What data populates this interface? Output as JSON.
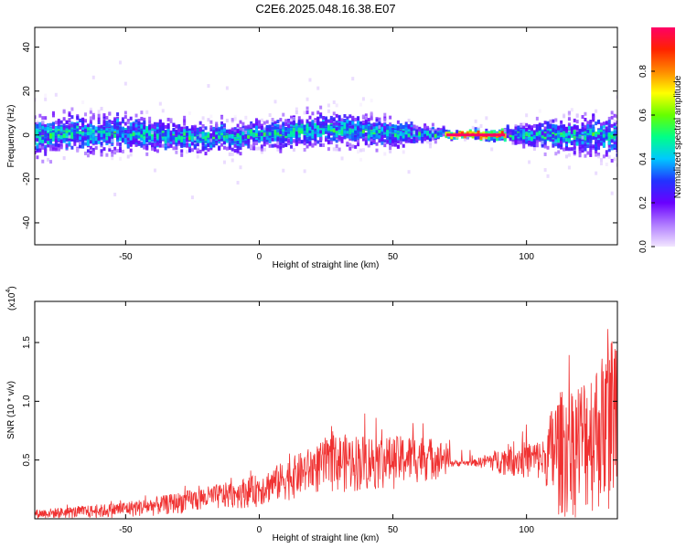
{
  "figure": {
    "title": "C2E6.2025.048.16.38.E07"
  },
  "chart_data": [
    {
      "type": "heatmap",
      "title": "C2E6.2025.048.16.38.E07",
      "xlabel": "Height of straight line (km)",
      "ylabel": "Frequency (Hz)",
      "xlim": [
        -84,
        134
      ],
      "ylim": [
        -50,
        49
      ],
      "x_ticks": [
        -50,
        0,
        50,
        100
      ],
      "x_tick_labels": [
        "-50",
        "0",
        "50",
        "100"
      ],
      "y_ticks": [
        -40,
        -20,
        0,
        20,
        40
      ],
      "y_tick_labels": [
        "-40",
        "-20",
        "0",
        "20",
        "40"
      ],
      "colorbar": {
        "label": "Normalized spectral amplitude",
        "range": [
          0,
          1
        ],
        "ticks": [
          0.0,
          0.2,
          0.4,
          0.6,
          0.8
        ],
        "tick_labels": [
          "0.0",
          "0.2",
          "0.4",
          "0.6",
          "0.8"
        ],
        "colors": [
          "#f2e6ff",
          "#b07cff",
          "#6a00ff",
          "#2233ff",
          "#00c8ff",
          "#00ff88",
          "#66ff00",
          "#ffff00",
          "#ff8800",
          "#ff2200",
          "#ff0066"
        ]
      },
      "ridge": {
        "description_values": [
          {
            "x": -80,
            "y": 0,
            "halfwidth": 12
          },
          {
            "x": -50,
            "y": 1,
            "halfwidth": 10
          },
          {
            "x": -20,
            "y": -1,
            "halfwidth": 8
          },
          {
            "x": 0,
            "y": 0,
            "halfwidth": 8
          },
          {
            "x": 25,
            "y": 3,
            "halfwidth": 10
          },
          {
            "x": 50,
            "y": 1,
            "halfwidth": 8
          },
          {
            "x": 70,
            "y": 0,
            "halfwidth": 2
          },
          {
            "x": 90,
            "y": 0,
            "halfwidth": 3
          },
          {
            "x": 105,
            "y": 0,
            "halfwidth": 8
          },
          {
            "x": 130,
            "y": 0,
            "halfwidth": 12
          }
        ],
        "peak_segment": {
          "x": [
            70,
            92
          ],
          "y": 0,
          "amplitude": 1.0
        }
      },
      "grid": false
    },
    {
      "type": "line",
      "xlabel": "Height of straight line (km)",
      "ylabel": "SNR (10 * v/v)",
      "y_scale_label": "(x10",
      "y_scale_exponent": "4",
      "xlim": [
        -84,
        134
      ],
      "ylim": [
        0,
        1.85
      ],
      "x_ticks": [
        -50,
        0,
        50,
        100
      ],
      "x_tick_labels": [
        "-50",
        "0",
        "50",
        "100"
      ],
      "y_ticks": [
        0.5,
        1.0,
        1.5
      ],
      "y_tick_labels": [
        "0.5",
        "1.0",
        "1.5"
      ],
      "series": [
        {
          "color": "#f03232",
          "envelope": {
            "x": [
              -84,
              -60,
              -40,
              -25,
              -10,
              0,
              10,
              20,
              30,
              40,
              50,
              60,
              70,
              72,
              80,
              90,
              100,
              107,
              110,
              120,
              130,
              134
            ],
            "upper": [
              0.08,
              0.12,
              0.18,
              0.25,
              0.32,
              0.38,
              0.5,
              0.62,
              0.72,
              0.72,
              0.7,
              0.72,
              0.65,
              0.5,
              0.5,
              0.6,
              0.66,
              0.68,
              1.05,
              1.2,
              1.45,
              1.75
            ],
            "lower": [
              0.0,
              0.0,
              0.02,
              0.05,
              0.08,
              0.1,
              0.15,
              0.2,
              0.22,
              0.22,
              0.25,
              0.3,
              0.35,
              0.44,
              0.45,
              0.38,
              0.33,
              0.3,
              0.0,
              0.0,
              0.05,
              0.05
            ]
          }
        }
      ],
      "grid": false
    }
  ]
}
